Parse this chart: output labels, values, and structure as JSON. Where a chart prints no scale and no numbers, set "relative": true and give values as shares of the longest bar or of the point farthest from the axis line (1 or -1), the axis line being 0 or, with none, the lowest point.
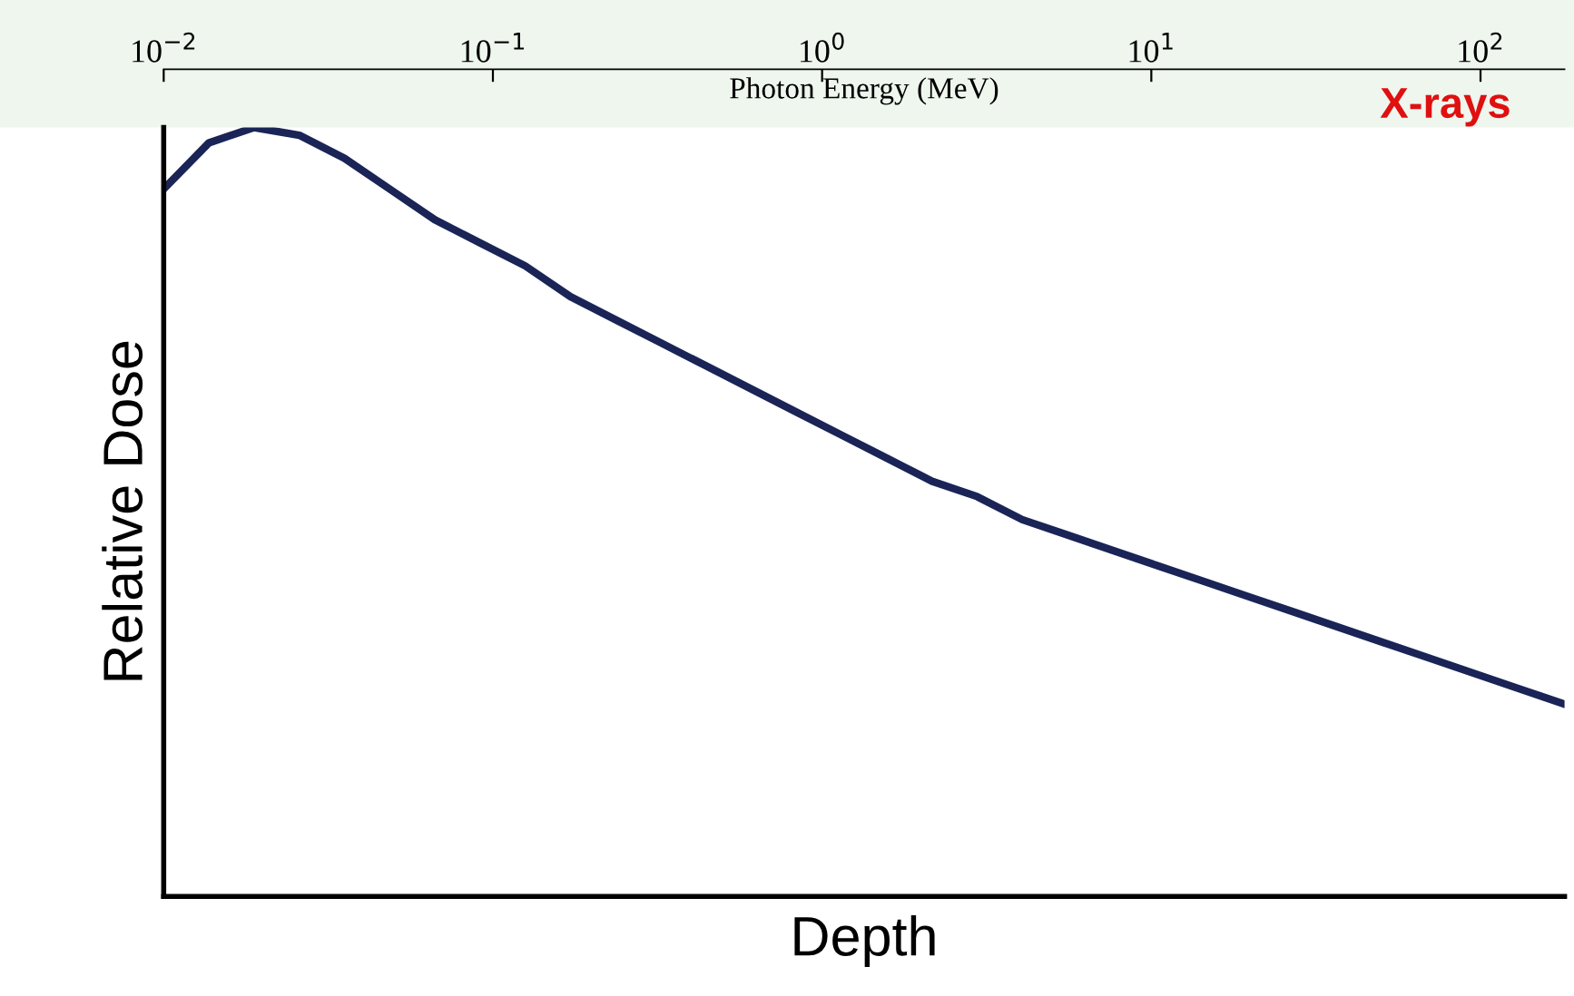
{
  "chart_data": {
    "type": "line",
    "relative": true,
    "xlabel": "Depth",
    "ylabel": "Relative Dose",
    "x2label": "Photon Energy (MeV)",
    "log": "x2",
    "x2lim": [
      0.01,
      180
    ],
    "x2ticks": [
      {
        "value": 0.01,
        "label": "10$^{−2}$"
      },
      {
        "value": 0.1,
        "label": "10$^{−1}$"
      },
      {
        "value": 1,
        "label": "10$^{0}$"
      },
      {
        "value": 10,
        "label": "10$^{1}$"
      },
      {
        "value": 100,
        "label": "10$^{2}$"
      }
    ],
    "annotations": [
      "X-rays"
    ],
    "categories": [
      null,
      null,
      null,
      null,
      null,
      null,
      null,
      null,
      null,
      null,
      null,
      null,
      null,
      null,
      null,
      null,
      null,
      null,
      null,
      null,
      null,
      null,
      null,
      null,
      null,
      null,
      null,
      null,
      null,
      null,
      null,
      null
    ],
    "series": [
      {
        "color": "#1a2456",
        "values": [
          0.92,
          0.98,
          1.0,
          0.99,
          0.96,
          0.92,
          0.88,
          0.85,
          0.82,
          0.78,
          0.75,
          0.72,
          0.69,
          0.66,
          0.63,
          0.6,
          0.57,
          0.54,
          0.52,
          0.49,
          0.47,
          0.45,
          0.43,
          0.41,
          0.39,
          0.37,
          0.35,
          0.33,
          0.31,
          0.29,
          0.27,
          0.25
        ]
      }
    ],
    "grid": false,
    "legend": false,
    "marker": "none",
    "line_style": "solid"
  }
}
